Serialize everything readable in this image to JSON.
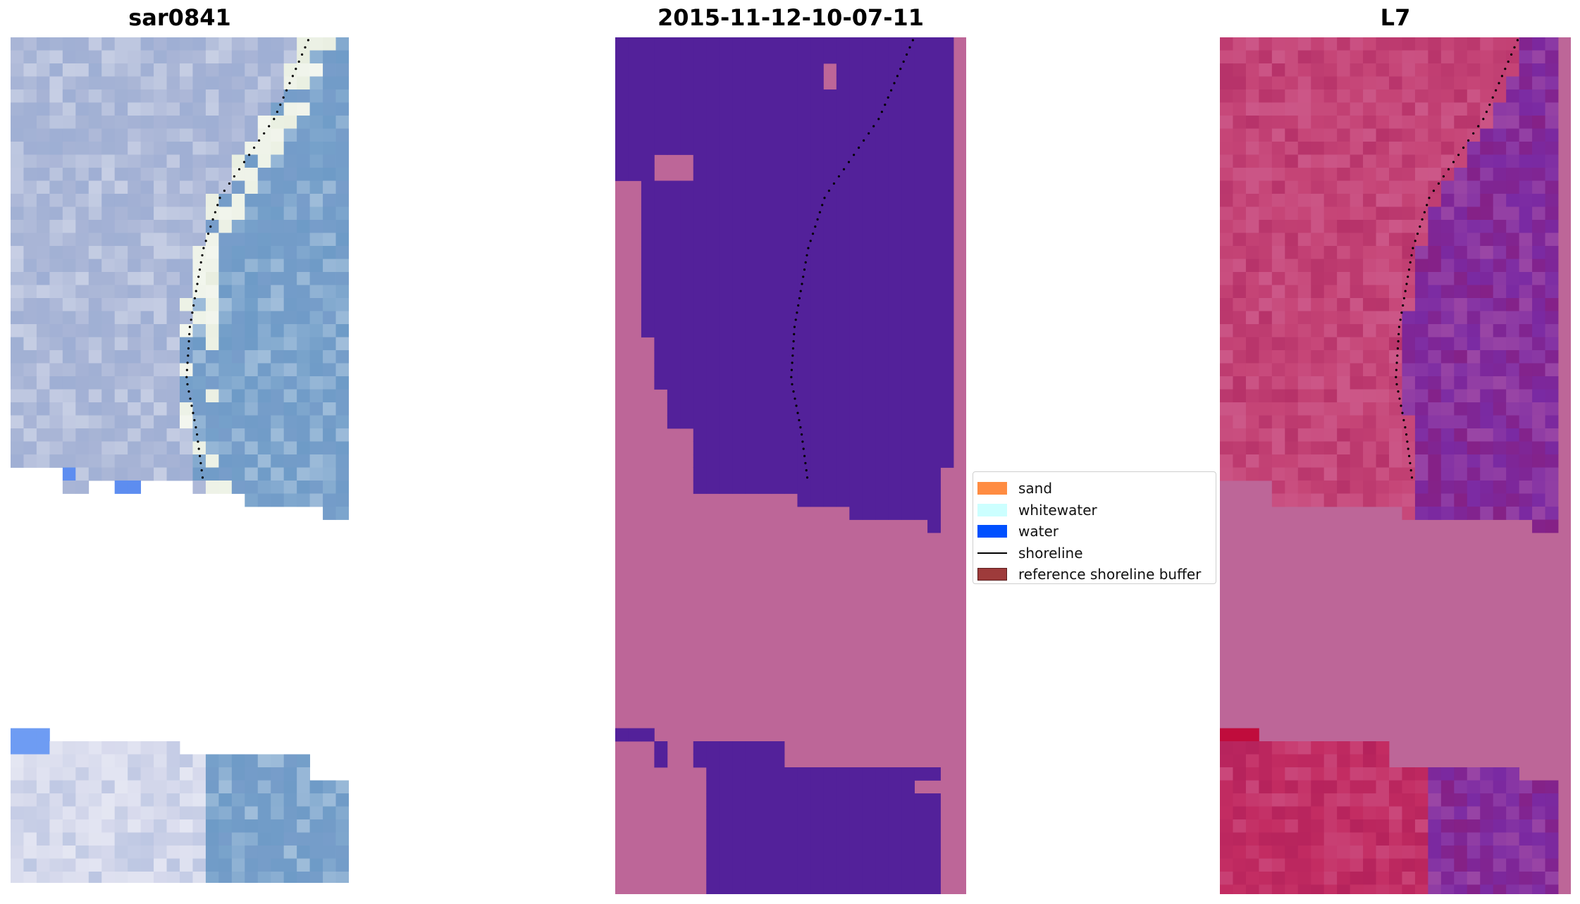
{
  "panels": [
    {
      "id": "rgb",
      "title": "sar0841"
    },
    {
      "id": "class",
      "title": "2015-11-12-10-07-11"
    },
    {
      "id": "ndwi",
      "title": "L7"
    }
  ],
  "legend": {
    "items": [
      {
        "label": "sand",
        "kind": "patch",
        "color": "#ff8c42"
      },
      {
        "label": "whitewater",
        "kind": "patch",
        "color": "#ccffff"
      },
      {
        "label": "water",
        "kind": "patch",
        "color": "#0050ff"
      },
      {
        "label": "shoreline",
        "kind": "line",
        "color": "#000000"
      },
      {
        "label": "reference shoreline buffer",
        "kind": "patch",
        "color": "#9e3b3b"
      }
    ]
  },
  "colors": {
    "classified_water": "#53219a",
    "classified_land": "#bd6698",
    "no_data_fill": "#bd6698",
    "shoreline_dots": "#000000",
    "rgb_water": "#6e9bc7",
    "rgb_land": "#a9b5d6",
    "ndwi_land": "#c64577",
    "ndwi_water": "#7a2aa3"
  }
}
